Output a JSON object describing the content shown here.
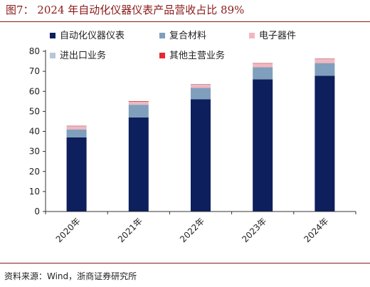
{
  "figure": {
    "title": "图7：  2024 年自动化仪器仪表产品营收占比 89%",
    "source": "资料来源：Wind，浙商证券研究所"
  },
  "chart_data": {
    "type": "bar",
    "stacked": true,
    "categories": [
      "2020年",
      "2021年",
      "2022年",
      "2023年",
      "2024年"
    ],
    "series": [
      {
        "name": "自动化仪器仪表",
        "color": "#0d1f5c",
        "values": [
          37.0,
          47.0,
          56.0,
          66.0,
          67.8
        ]
      },
      {
        "name": "复合材料",
        "color": "#7f9fbd",
        "values": [
          4.0,
          6.3,
          5.7,
          6.0,
          6.3
        ]
      },
      {
        "name": "电子器件",
        "color": "#f4b6bd",
        "values": [
          1.3,
          1.2,
          1.3,
          1.6,
          1.7
        ]
      },
      {
        "name": "进出口业务",
        "color": "#b7c7d8",
        "values": [
          0.3,
          0.3,
          0.3,
          0.3,
          0.3
        ]
      },
      {
        "name": "其他主营业务",
        "color": "#e8272f",
        "values": [
          0.2,
          0.3,
          0.2,
          0.2,
          0.2
        ]
      }
    ],
    "ylim": [
      0,
      80
    ],
    "yticks": [
      0,
      10,
      20,
      30,
      40,
      50,
      60,
      70,
      80
    ],
    "grid": false,
    "legend_position": "top"
  }
}
